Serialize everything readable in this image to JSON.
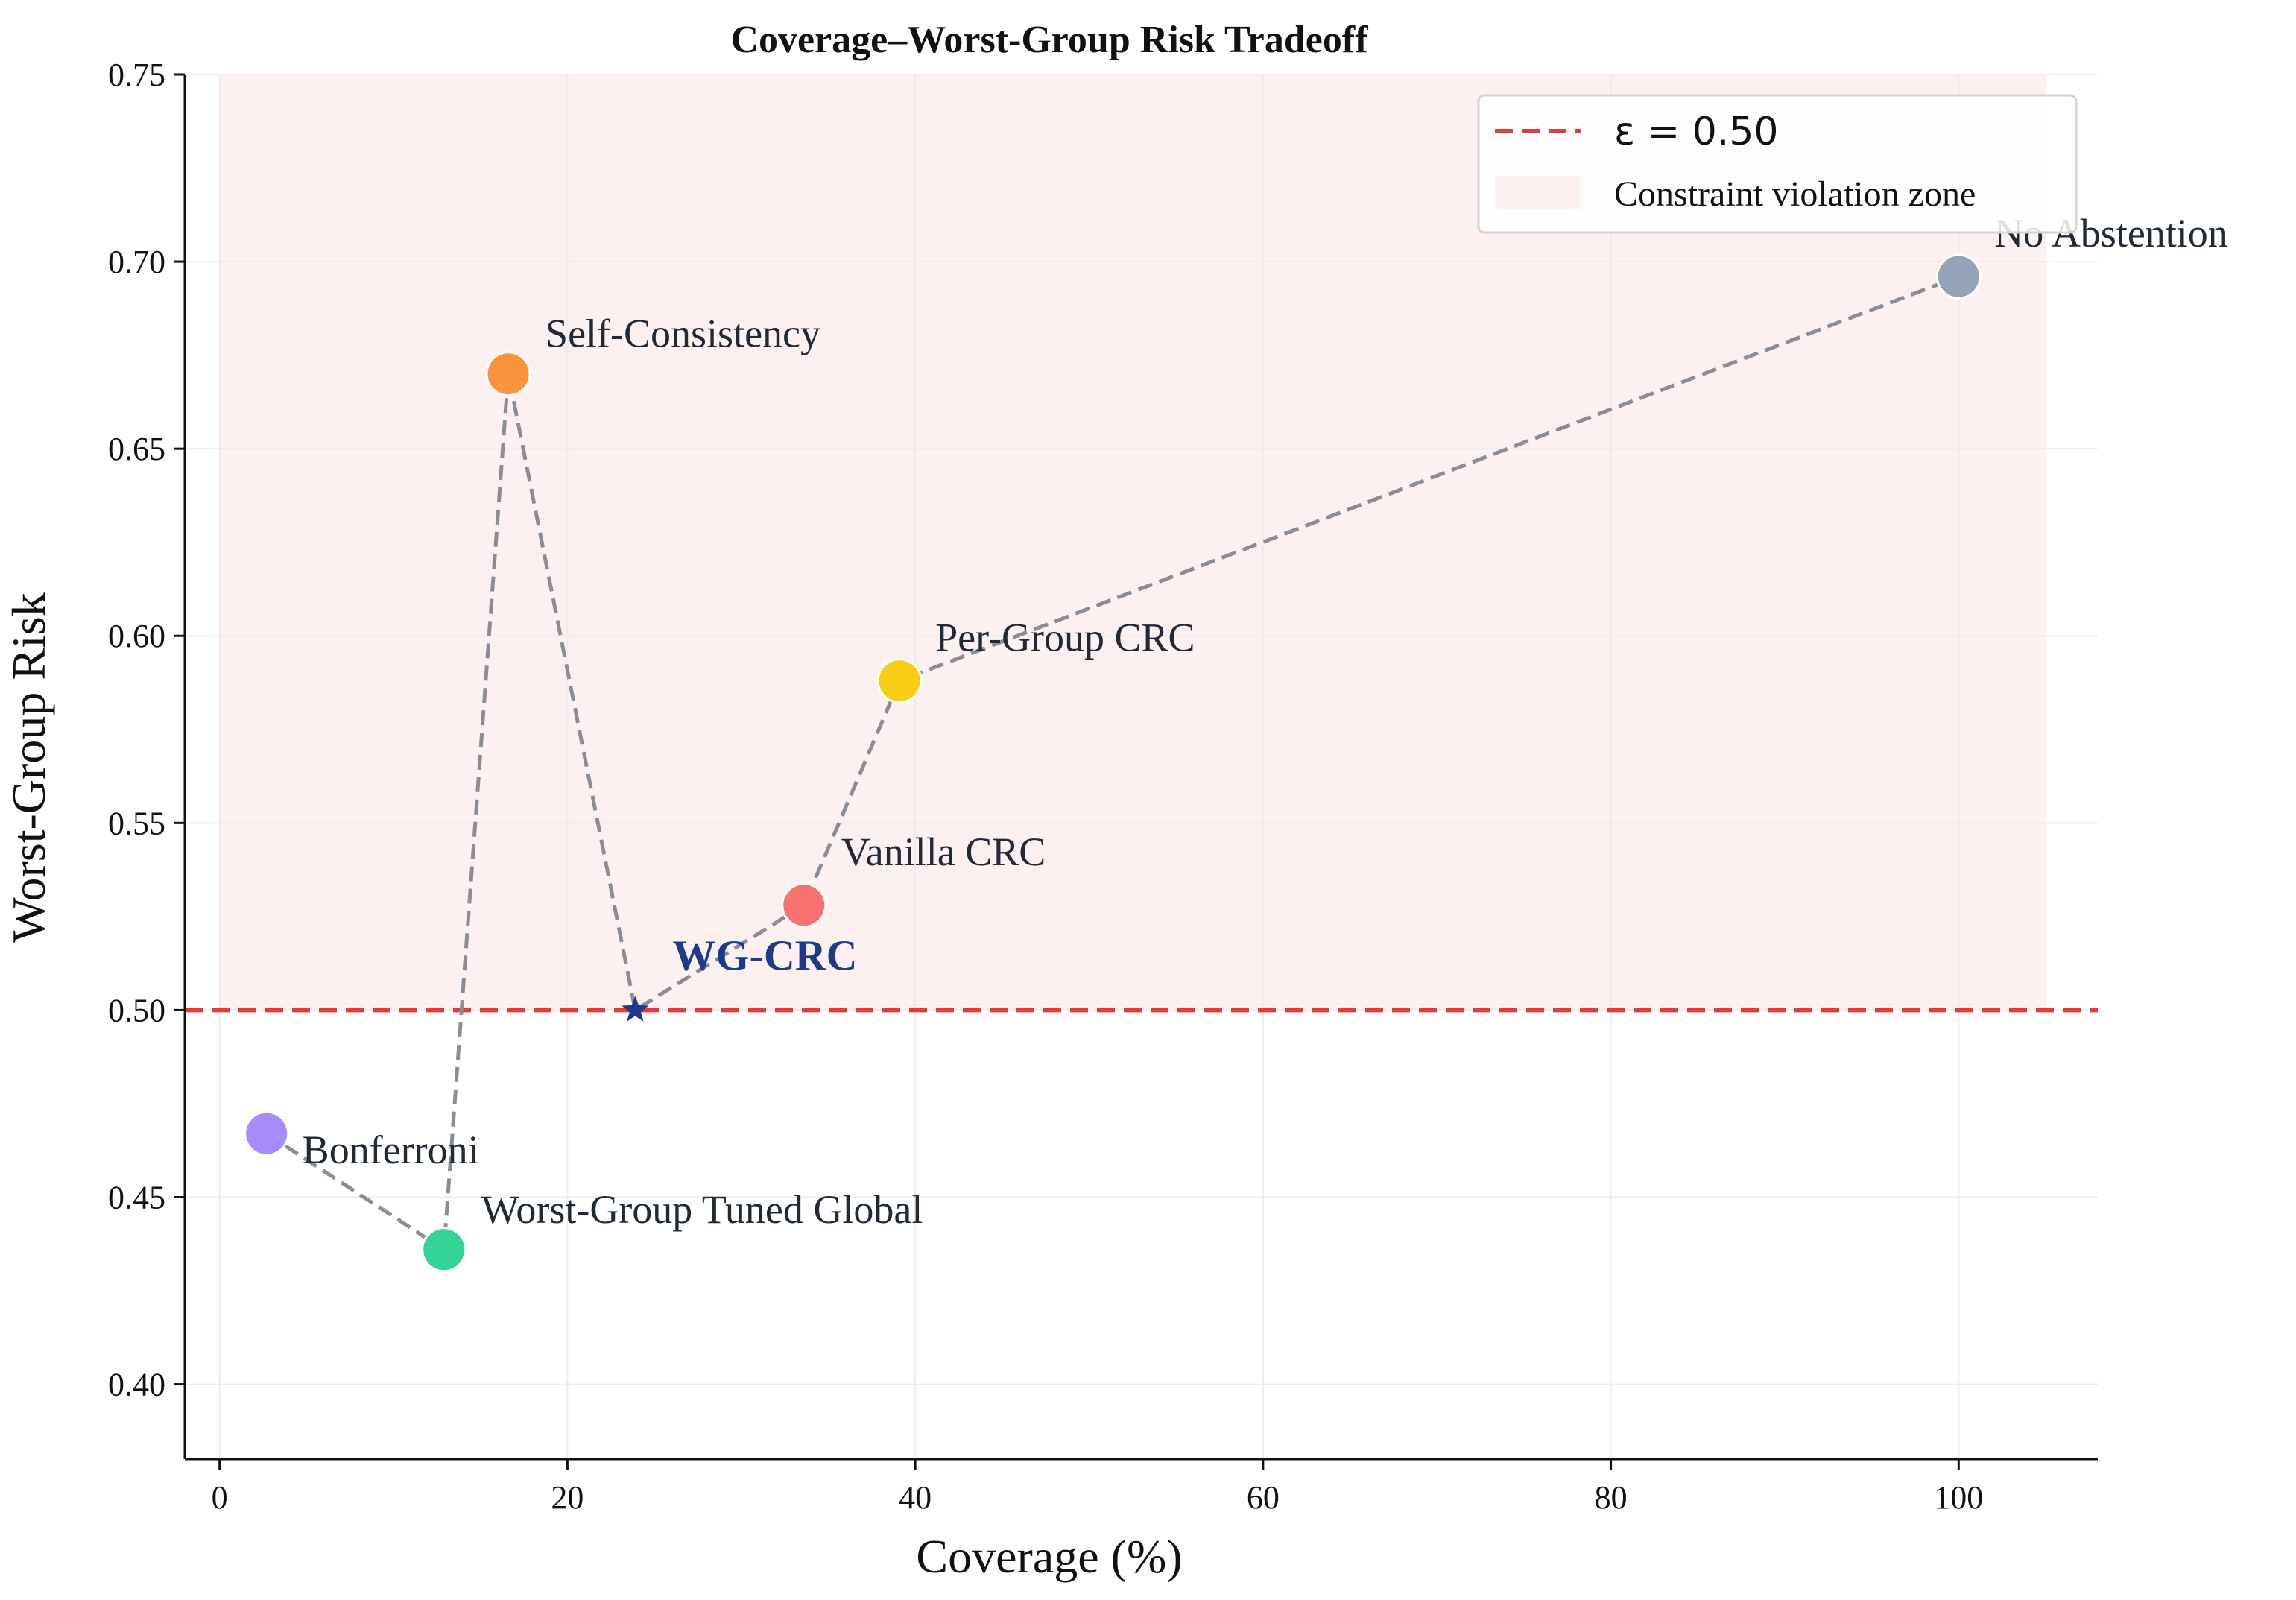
{
  "chart_data": {
    "type": "scatter",
    "title": "Coverage–Worst-Group Risk Tradeoff",
    "xlabel": "Coverage (%)",
    "ylabel": "Worst-Group Risk",
    "xlim": [
      -2,
      108
    ],
    "ylim": [
      0.38,
      0.75
    ],
    "xticks": [
      0,
      20,
      40,
      60,
      80,
      100
    ],
    "xtick_labels": [
      "0",
      "20",
      "40",
      "60",
      "80",
      "100"
    ],
    "yticks": [
      0.4,
      0.45,
      0.5,
      0.55,
      0.6,
      0.65,
      0.7,
      0.75
    ],
    "ytick_labels": [
      "0.40",
      "0.45",
      "0.50",
      "0.55",
      "0.60",
      "0.65",
      "0.70",
      "0.75"
    ],
    "grid": true,
    "legend_position": "top-right",
    "threshold": {
      "value": 0.5,
      "label": "ε = 0.50",
      "color": "#e03c3c"
    },
    "violation_zone": {
      "label": "Constraint violation zone",
      "x_range": [
        0,
        105
      ],
      "y_range": [
        0.5,
        0.75
      ],
      "color": "#fdf0f0"
    },
    "connector_color": "#8a8d98",
    "points": [
      {
        "label": "Bonferroni",
        "x": 2.7,
        "y": 0.467,
        "color": "#a78bfa",
        "marker": "circle"
      },
      {
        "label": "Worst-Group Tuned Global",
        "x": 12.9,
        "y": 0.436,
        "color": "#34d399",
        "marker": "circle"
      },
      {
        "label": "Self-Consistency",
        "x": 16.6,
        "y": 0.67,
        "color": "#fb923c",
        "marker": "circle"
      },
      {
        "label": "WG-CRC",
        "x": 23.9,
        "y": 0.5,
        "color": "#1e3a8a",
        "marker": "star"
      },
      {
        "label": "Vanilla CRC",
        "x": 33.6,
        "y": 0.528,
        "color": "#f87171",
        "marker": "circle"
      },
      {
        "label": "Per-Group CRC",
        "x": 39.1,
        "y": 0.588,
        "color": "#facc15",
        "marker": "circle"
      },
      {
        "label": "No Abstention",
        "x": 100.0,
        "y": 0.696,
        "color": "#94a3b8",
        "marker": "circle"
      }
    ]
  }
}
